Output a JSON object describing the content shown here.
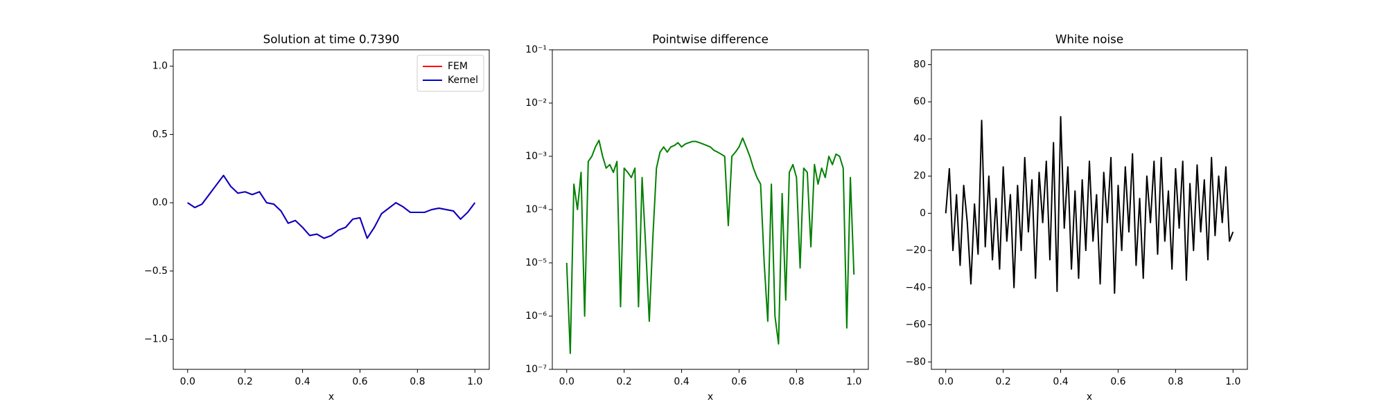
{
  "chart_data": [
    {
      "type": "line",
      "title": "Solution at time 0.7390",
      "xlabel": "x",
      "legend": "upper right",
      "xlim": [
        -0.05,
        1.05
      ],
      "ylim": [
        -1.22,
        1.12
      ],
      "xticks": [
        {
          "value": 0,
          "label": "0.0"
        },
        {
          "value": 0.2,
          "label": "0.2"
        },
        {
          "value": 0.4,
          "label": "0.4"
        },
        {
          "value": 0.6,
          "label": "0.6"
        },
        {
          "value": 0.8,
          "label": "0.8"
        },
        {
          "value": 1,
          "label": "1.0"
        }
      ],
      "yticks": [
        {
          "value": -1,
          "label": "−1.0"
        },
        {
          "value": -0.5,
          "label": "−0.5"
        },
        {
          "value": 0,
          "label": "0.0"
        },
        {
          "value": 0.5,
          "label": "0.5"
        },
        {
          "value": 1,
          "label": "1.0"
        }
      ],
      "x": [
        0,
        0.025,
        0.05,
        0.075,
        0.1,
        0.125,
        0.15,
        0.175,
        0.2,
        0.225,
        0.25,
        0.275,
        0.3,
        0.325,
        0.35,
        0.375,
        0.4,
        0.425,
        0.45,
        0.475,
        0.5,
        0.525,
        0.55,
        0.575,
        0.6,
        0.625,
        0.65,
        0.675,
        0.7,
        0.725,
        0.75,
        0.775,
        0.8,
        0.825,
        0.85,
        0.875,
        0.9,
        0.925,
        0.95,
        0.975,
        1
      ],
      "series": [
        {
          "name": "FEM",
          "color": "#ff0000",
          "values": [
            0.0,
            -0.035,
            -0.01,
            0.06,
            0.13,
            0.2,
            0.12,
            0.07,
            0.08,
            0.06,
            0.08,
            0.0,
            -0.01,
            -0.06,
            -0.15,
            -0.13,
            -0.18,
            -0.24,
            -0.23,
            -0.26,
            -0.24,
            -0.2,
            -0.18,
            -0.12,
            -0.11,
            -0.26,
            -0.18,
            -0.08,
            -0.04,
            0.0,
            -0.03,
            -0.07,
            -0.07,
            -0.07,
            -0.05,
            -0.04,
            -0.05,
            -0.06,
            -0.12,
            -0.07,
            0.0
          ]
        },
        {
          "name": "Kernel",
          "color": "#0000cc",
          "values": [
            0.0,
            -0.035,
            -0.01,
            0.06,
            0.13,
            0.2,
            0.12,
            0.07,
            0.08,
            0.06,
            0.08,
            0.0,
            -0.01,
            -0.06,
            -0.15,
            -0.13,
            -0.18,
            -0.24,
            -0.23,
            -0.26,
            -0.24,
            -0.2,
            -0.18,
            -0.12,
            -0.11,
            -0.26,
            -0.18,
            -0.08,
            -0.04,
            0.0,
            -0.03,
            -0.07,
            -0.07,
            -0.07,
            -0.05,
            -0.04,
            -0.05,
            -0.06,
            -0.12,
            -0.07,
            0.0
          ]
        }
      ]
    },
    {
      "type": "line",
      "title": "Pointwise difference",
      "xlabel": "x",
      "log_y": true,
      "xlim": [
        -0.05,
        1.05
      ],
      "ylim": [
        1e-07,
        0.1
      ],
      "xticks": [
        {
          "value": 0,
          "label": "0.0"
        },
        {
          "value": 0.2,
          "label": "0.2"
        },
        {
          "value": 0.4,
          "label": "0.4"
        },
        {
          "value": 0.6,
          "label": "0.6"
        },
        {
          "value": 0.8,
          "label": "0.8"
        },
        {
          "value": 1,
          "label": "1.0"
        }
      ],
      "yticks": [
        {
          "value": 1e-07,
          "label": "10⁻⁷"
        },
        {
          "value": 1e-06,
          "label": "10⁻⁶"
        },
        {
          "value": 1e-05,
          "label": "10⁻⁵"
        },
        {
          "value": 0.0001,
          "label": "10⁻⁴"
        },
        {
          "value": 0.001,
          "label": "10⁻³"
        },
        {
          "value": 0.01,
          "label": "10⁻²"
        },
        {
          "value": 0.1,
          "label": "10⁻¹"
        }
      ],
      "x": [
        0,
        0.0125,
        0.025,
        0.0375,
        0.05,
        0.0625,
        0.075,
        0.0875,
        0.1,
        0.1125,
        0.125,
        0.1375,
        0.15,
        0.1625,
        0.175,
        0.1875,
        0.2,
        0.2125,
        0.225,
        0.2375,
        0.25,
        0.2625,
        0.275,
        0.2875,
        0.3,
        0.3125,
        0.325,
        0.3375,
        0.35,
        0.3625,
        0.375,
        0.3875,
        0.4,
        0.4125,
        0.425,
        0.4375,
        0.45,
        0.4625,
        0.475,
        0.4875,
        0.5,
        0.5125,
        0.525,
        0.5375,
        0.55,
        0.5625,
        0.575,
        0.5875,
        0.6,
        0.6125,
        0.625,
        0.6375,
        0.65,
        0.6625,
        0.675,
        0.6875,
        0.7,
        0.7125,
        0.725,
        0.7375,
        0.75,
        0.7625,
        0.775,
        0.7875,
        0.8,
        0.8125,
        0.825,
        0.8375,
        0.85,
        0.8625,
        0.875,
        0.8875,
        0.9,
        0.9125,
        0.925,
        0.9375,
        0.95,
        0.9625,
        0.975,
        0.9875,
        1
      ],
      "series": [
        {
          "color": "#008000",
          "values": [
            1e-05,
            2e-07,
            0.0003,
            0.0001,
            0.0005,
            1e-06,
            0.0008,
            0.001,
            0.0015,
            0.002,
            0.001,
            0.0006,
            0.0007,
            0.0005,
            0.0008,
            1.5e-06,
            0.0006,
            0.0005,
            0.0004,
            0.0006,
            1.5e-06,
            0.0004,
            2e-05,
            8e-07,
            3e-05,
            0.0006,
            0.0012,
            0.0015,
            0.0012,
            0.0015,
            0.0016,
            0.0018,
            0.0015,
            0.0017,
            0.0018,
            0.0019,
            0.0019,
            0.0018,
            0.0017,
            0.0016,
            0.0015,
            0.0013,
            0.0012,
            0.0011,
            0.001,
            5e-05,
            0.001,
            0.0012,
            0.0015,
            0.0022,
            0.0015,
            0.001,
            0.0006,
            0.0004,
            0.0003,
            1e-05,
            8e-07,
            0.0003,
            1e-06,
            3e-07,
            0.0002,
            2e-06,
            0.0005,
            0.0007,
            0.0004,
            8e-06,
            0.0006,
            0.0005,
            2e-05,
            0.0007,
            0.0003,
            0.0006,
            0.0004,
            0.001,
            0.0007,
            0.0011,
            0.001,
            0.0006,
            6e-07,
            0.0004,
            6e-06
          ]
        }
      ]
    },
    {
      "type": "line",
      "title": "White noise",
      "xlabel": "x",
      "xlim": [
        -0.05,
        1.05
      ],
      "ylim": [
        -84,
        88
      ],
      "xticks": [
        {
          "value": 0,
          "label": "0.0"
        },
        {
          "value": 0.2,
          "label": "0.2"
        },
        {
          "value": 0.4,
          "label": "0.4"
        },
        {
          "value": 0.6,
          "label": "0.6"
        },
        {
          "value": 0.8,
          "label": "0.8"
        },
        {
          "value": 1,
          "label": "1.0"
        }
      ],
      "yticks": [
        {
          "value": -80,
          "label": "−80"
        },
        {
          "value": -60,
          "label": "−60"
        },
        {
          "value": -40,
          "label": "−40"
        },
        {
          "value": -20,
          "label": "−20"
        },
        0,
        20,
        40,
        60,
        80
      ],
      "x": [
        0,
        0.0125,
        0.025,
        0.0375,
        0.05,
        0.0625,
        0.075,
        0.0875,
        0.1,
        0.1125,
        0.125,
        0.1375,
        0.15,
        0.1625,
        0.175,
        0.1875,
        0.2,
        0.2125,
        0.225,
        0.2375,
        0.25,
        0.2625,
        0.275,
        0.2875,
        0.3,
        0.3125,
        0.325,
        0.3375,
        0.35,
        0.3625,
        0.375,
        0.3875,
        0.4,
        0.4125,
        0.425,
        0.4375,
        0.45,
        0.4625,
        0.475,
        0.4875,
        0.5,
        0.5125,
        0.525,
        0.5375,
        0.55,
        0.5625,
        0.575,
        0.5875,
        0.6,
        0.6125,
        0.625,
        0.6375,
        0.65,
        0.6625,
        0.675,
        0.6875,
        0.7,
        0.7125,
        0.725,
        0.7375,
        0.75,
        0.7625,
        0.775,
        0.7875,
        0.8,
        0.8125,
        0.825,
        0.8375,
        0.85,
        0.8625,
        0.875,
        0.8875,
        0.9,
        0.9125,
        0.925,
        0.9375,
        0.95,
        0.9625,
        0.975,
        0.9875,
        1
      ],
      "series": [
        {
          "color": "#000000",
          "values": [
            0,
            24,
            -20,
            10,
            -28,
            15,
            -5,
            -38,
            5,
            -22,
            50,
            -18,
            20,
            -25,
            8,
            -30,
            25,
            -15,
            10,
            -40,
            15,
            -20,
            30,
            -10,
            18,
            -35,
            22,
            -5,
            28,
            -25,
            38,
            -42,
            52,
            -8,
            25,
            -30,
            12,
            -35,
            18,
            -20,
            28,
            -15,
            10,
            -38,
            22,
            -5,
            30,
            -43,
            15,
            -20,
            25,
            -10,
            32,
            -28,
            8,
            -35,
            20,
            -5,
            28,
            -22,
            30,
            -15,
            12,
            -30,
            24,
            -8,
            28,
            -36,
            16,
            -20,
            26,
            -10,
            18,
            -25,
            30,
            -12,
            20,
            -5,
            25,
            -15,
            -10
          ]
        }
      ]
    }
  ]
}
